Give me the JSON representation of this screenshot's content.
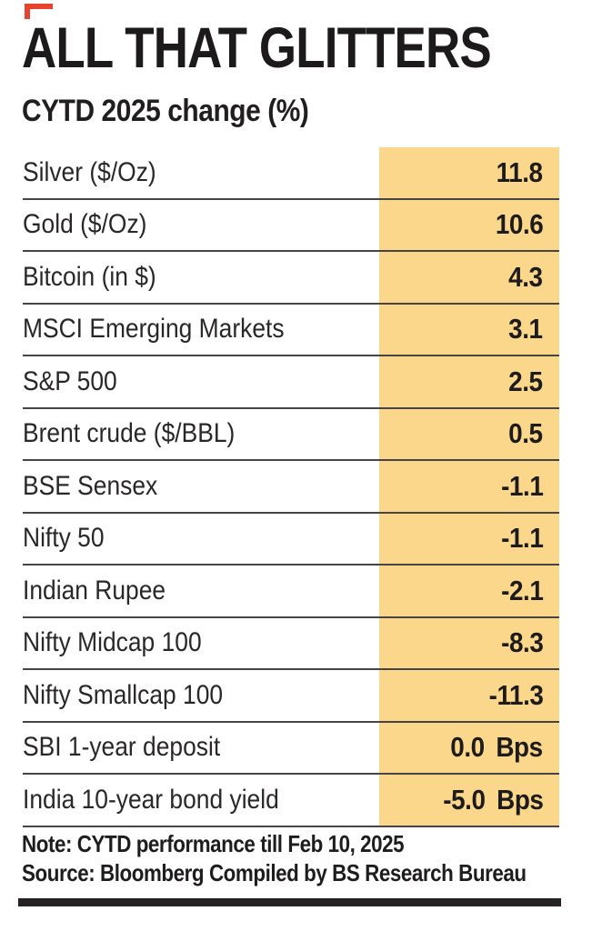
{
  "header": {
    "title": "ALL THAT GLITTERS",
    "subtitle": "CYTD 2025 change (%)"
  },
  "chart_data": {
    "type": "table",
    "title": "ALL THAT GLITTERS",
    "subtitle": "CYTD 2025 change (%)",
    "value_column": "CYTD 2025 change (%)",
    "rows": [
      {
        "label": "Silver ($/Oz)",
        "value": "11.8",
        "unit": ""
      },
      {
        "label": "Gold ($/Oz)",
        "value": "10.6",
        "unit": ""
      },
      {
        "label": "Bitcoin (in $)",
        "value": "4.3",
        "unit": ""
      },
      {
        "label": "MSCI Emerging Markets",
        "value": "3.1",
        "unit": ""
      },
      {
        "label": "S&P 500",
        "value": "2.5",
        "unit": ""
      },
      {
        "label": "Brent crude ($/BBL)",
        "value": "0.5",
        "unit": ""
      },
      {
        "label": "BSE Sensex",
        "value": "-1.1",
        "unit": ""
      },
      {
        "label": "Nifty 50",
        "value": "-1.1",
        "unit": ""
      },
      {
        "label": "Indian Rupee",
        "value": "-2.1",
        "unit": ""
      },
      {
        "label": "Nifty Midcap 100",
        "value": "-8.3",
        "unit": ""
      },
      {
        "label": "Nifty Smallcap 100",
        "value": "-11.3",
        "unit": ""
      },
      {
        "label": "SBI 1-year deposit",
        "value": "0.0",
        "unit": "Bps"
      },
      {
        "label": "India 10-year bond yield",
        "value": "-5.0",
        "unit": "Bps"
      }
    ]
  },
  "footer": {
    "note": "Note: CYTD performance till Feb 10, 2025",
    "source": "Source: Bloomberg Compiled by BS Research Bureau"
  },
  "colors": {
    "highlight": "#FBD78C",
    "corner_red": "#E8432F",
    "rule": "#474443",
    "bottom_bar": "#262223",
    "text": "#231F20"
  }
}
